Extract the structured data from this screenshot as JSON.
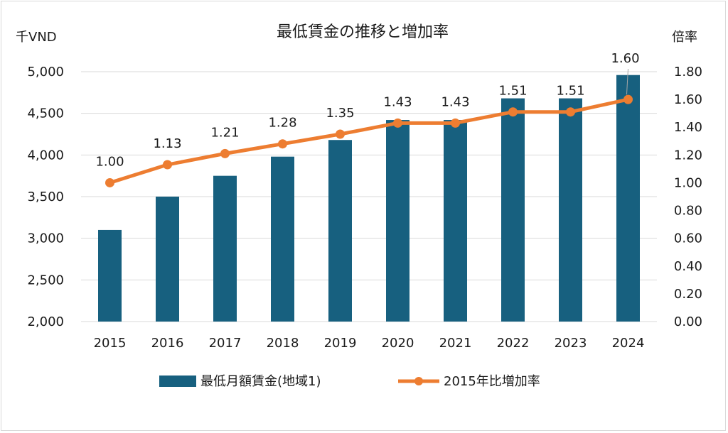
{
  "chart_data": {
    "type": "bar",
    "title": "最低賃金の推移と増加率",
    "y_left_unit": "千VND",
    "y_right_unit": "倍率",
    "categories": [
      "2015",
      "2016",
      "2017",
      "2018",
      "2019",
      "2020",
      "2021",
      "2022",
      "2023",
      "2024"
    ],
    "ylim_left": [
      2000,
      5000
    ],
    "yticks_left": [
      "2,000",
      "2,500",
      "3,000",
      "3,500",
      "4,000",
      "4,500",
      "5,000"
    ],
    "ylim_right": [
      0,
      1.8
    ],
    "yticks_right": [
      "0.00",
      "0.20",
      "0.40",
      "0.60",
      "0.80",
      "1.00",
      "1.20",
      "1.40",
      "1.60",
      "1.80"
    ],
    "grid": true,
    "legend_position": "bottom",
    "series": [
      {
        "name": "最低月額賃金(地域1)",
        "type": "bar",
        "axis": "left",
        "color": "#17607f",
        "values": [
          3100,
          3500,
          3750,
          3980,
          4180,
          4420,
          4420,
          4680,
          4680,
          4960
        ]
      },
      {
        "name": "2015年比増加率",
        "type": "line",
        "axis": "right",
        "color": "#ed7d31",
        "values": [
          1.0,
          1.13,
          1.21,
          1.28,
          1.35,
          1.43,
          1.43,
          1.51,
          1.51,
          1.6
        ],
        "labels": [
          "1.00",
          "1.13",
          "1.21",
          "1.28",
          "1.35",
          "1.43",
          "1.43",
          "1.51",
          "1.51",
          "1.60"
        ]
      }
    ]
  }
}
